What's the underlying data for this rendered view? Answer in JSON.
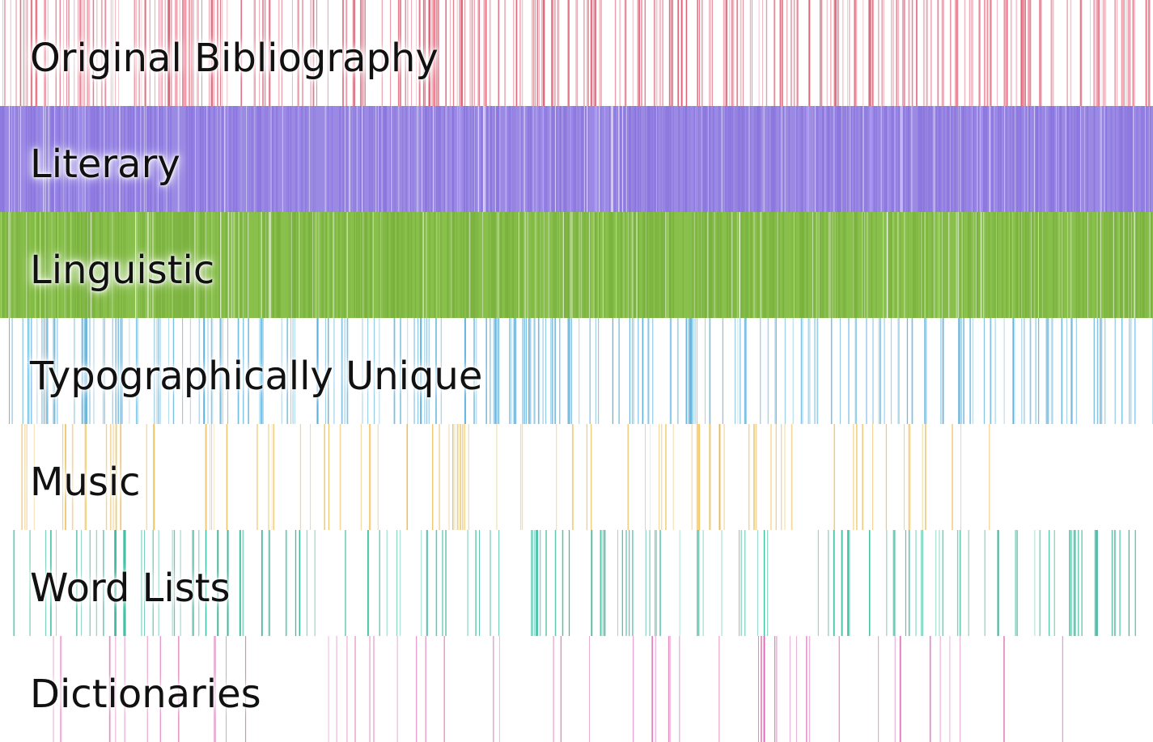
{
  "chart_data": {
    "type": "barcode",
    "title": "",
    "x_domain": [
      0,
      1
    ],
    "rows": [
      {
        "key": "original_bibliography",
        "label": "Original Bibliography",
        "color": "#d94b63",
        "background": "#ffffff",
        "line_count": 420,
        "density_pattern": [
          1.0,
          0.95,
          0.92,
          0.96,
          0.9,
          0.88,
          0.92,
          0.95,
          0.93,
          0.9,
          0.94,
          0.97,
          0.9,
          0.92,
          0.88,
          0.94,
          0.96,
          0.9,
          0.92,
          0.95
        ],
        "opacity_range": [
          0.3,
          0.75
        ],
        "segment_span": [
          0.0,
          1.0
        ]
      },
      {
        "key": "literary",
        "label": "Literary",
        "color": "#8a76de",
        "background": "#9b8ae4",
        "line_count": 720,
        "density_pattern": [
          1.0,
          0.96,
          0.98,
          0.97,
          0.94,
          0.98,
          0.96,
          0.93,
          0.95,
          0.96,
          0.98,
          0.95,
          0.97,
          0.94,
          0.96,
          0.98,
          0.97,
          0.95,
          0.96,
          0.97
        ],
        "opacity_range": [
          0.6,
          1.0
        ],
        "segment_span": [
          0.0,
          1.0
        ]
      },
      {
        "key": "linguistic",
        "label": "Linguistic",
        "color": "#7bb13f",
        "background": "#89c04c",
        "line_count": 760,
        "density_pattern": [
          1.0,
          0.98,
          0.97,
          0.99,
          0.96,
          0.98,
          0.97,
          0.96,
          0.98,
          0.97,
          0.95,
          0.98,
          0.99,
          0.97,
          0.96,
          0.98,
          0.97,
          0.96,
          0.97,
          0.98
        ],
        "opacity_range": [
          0.6,
          1.0
        ],
        "segment_span": [
          0.0,
          1.0
        ]
      },
      {
        "key": "typographically_unique",
        "label": "Typographically Unique",
        "color": "#4ea9d8",
        "background": "#ffffff",
        "line_count": 300,
        "density_pattern": [
          0.95,
          0.88,
          0.9,
          0.85,
          0.82,
          0.8,
          0.86,
          0.92,
          0.87,
          0.84,
          0.78,
          0.74,
          0.82,
          0.88,
          0.86,
          0.8,
          0.75,
          0.84,
          0.9,
          0.82
        ],
        "opacity_range": [
          0.35,
          0.85
        ],
        "segment_span": [
          0.0,
          1.0
        ]
      },
      {
        "key": "music",
        "label": "Music",
        "color": "#e8b33e",
        "background": "#ffffff",
        "line_count": 170,
        "density_pattern": [
          0.55,
          0.6,
          0.4,
          0.55,
          0.5,
          0.6,
          0.45,
          0.58,
          0.52,
          0.48,
          0.56,
          0.62,
          0.4,
          0.5,
          0.58,
          0.46,
          0.54,
          0.6,
          0.38,
          0.3
        ],
        "opacity_range": [
          0.35,
          0.85
        ],
        "segment_span": [
          0.015,
          0.86
        ]
      },
      {
        "key": "word_lists",
        "label": "Word Lists",
        "color": "#2fb597",
        "background": "#ffffff",
        "line_count": 240,
        "density_pattern": [
          0.65,
          0.58,
          0.72,
          0.62,
          0.55,
          0.68,
          0.6,
          0.7,
          0.64,
          0.56,
          0.74,
          0.6,
          0.66,
          0.58,
          0.62,
          0.56,
          0.68,
          0.62,
          0.58,
          0.65
        ],
        "opacity_range": [
          0.45,
          0.95
        ],
        "segment_span": [
          0.012,
          0.995
        ]
      },
      {
        "key": "dictionaries",
        "label": "Dictionaries",
        "color": "#d85fae",
        "background": "#ffffff",
        "line_count": 150,
        "density_pattern": [
          0.5,
          0.42,
          0.45,
          0.4,
          0.5,
          0.38,
          0.46,
          0.52,
          0.44,
          0.48,
          0.4,
          0.42,
          0.36,
          0.44,
          0.4,
          0.46,
          0.42,
          0.38,
          0.4,
          0.34
        ],
        "opacity_range": [
          0.4,
          0.9
        ],
        "segment_span": [
          0.045,
          0.94
        ]
      }
    ]
  }
}
